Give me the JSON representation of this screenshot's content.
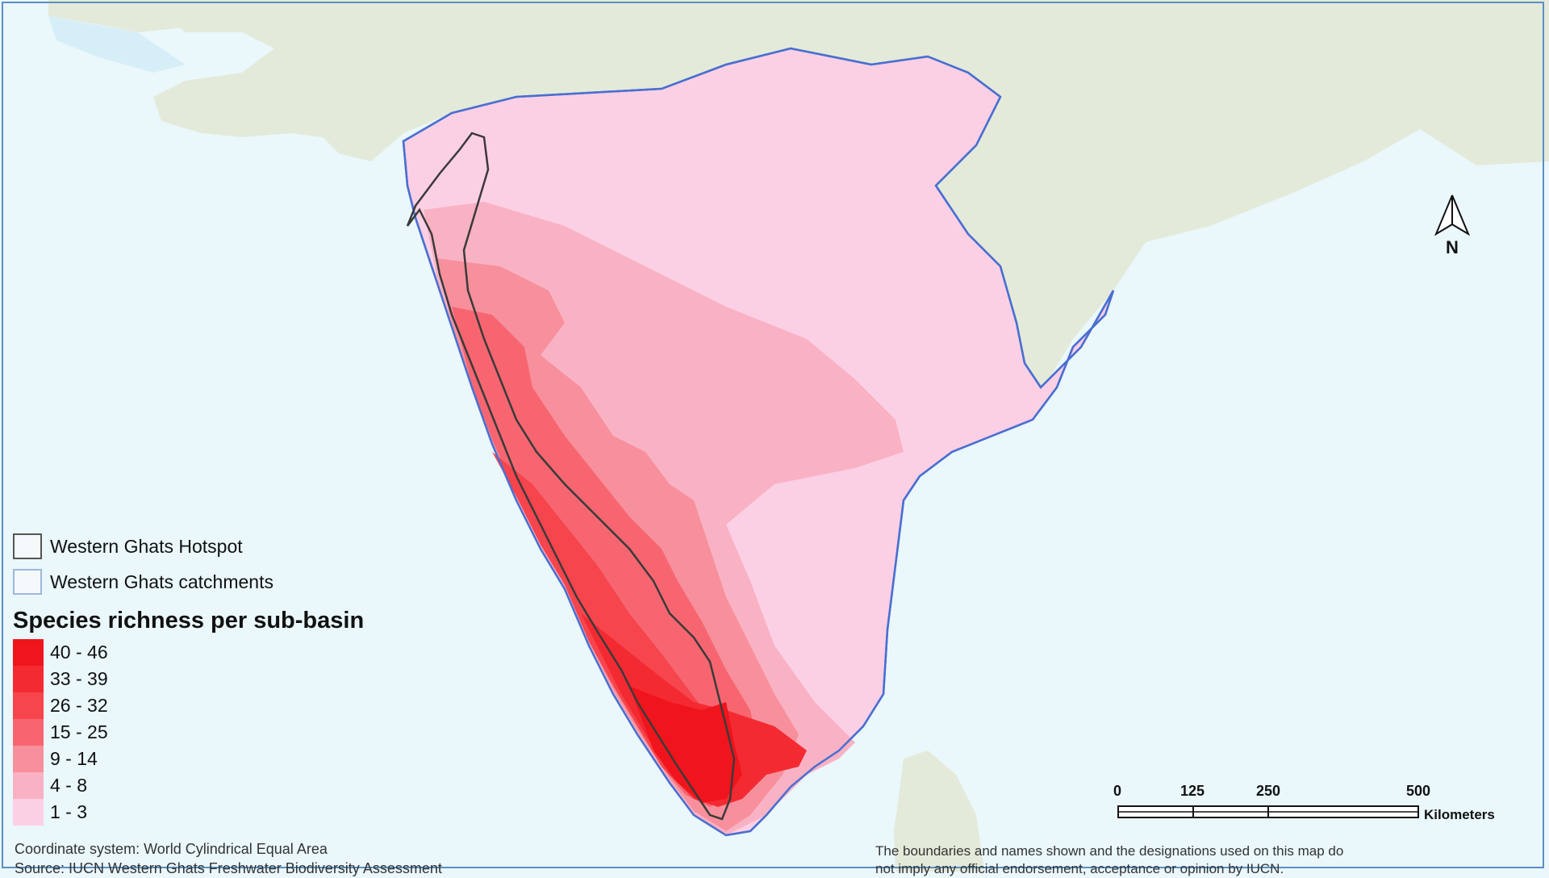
{
  "legend": {
    "hotspot_label": "Western Ghats Hotspot",
    "catchments_label": "Western Ghats catchments",
    "title": "Species richness per sub-basin",
    "classes": [
      {
        "label": "40 - 46",
        "color": "#f0141c"
      },
      {
        "label": "33 - 39",
        "color": "#f42a32"
      },
      {
        "label": "26 - 32",
        "color": "#f6454d"
      },
      {
        "label": "15 - 25",
        "color": "#f76670"
      },
      {
        "label": "9 - 14",
        "color": "#f7909c"
      },
      {
        "label": "4 - 8",
        "color": "#f9b2c4"
      },
      {
        "label": "1 - 3",
        "color": "#fcd0e4"
      }
    ]
  },
  "north_arrow": {
    "label": "N"
  },
  "scale_bar": {
    "ticks": [
      "0",
      "125",
      "250",
      "500"
    ],
    "units": "Kilometers"
  },
  "footer": {
    "coordinate_system": "Coordinate system: World Cylindrical Equal Area",
    "source": "Source: IUCN Western Ghats Freshwater Biodiversity Assessment",
    "disclaimer_line1": "The boundaries and names shown and the designations used on this map do",
    "disclaimer_line2": "not imply any official endorsement, acceptance or opinion by IUCN."
  },
  "colors": {
    "water": "#eaf7fb",
    "land": "#e3ead9",
    "catchment_outline": "#4a6fd1",
    "hotspot_outline": "#333333"
  }
}
